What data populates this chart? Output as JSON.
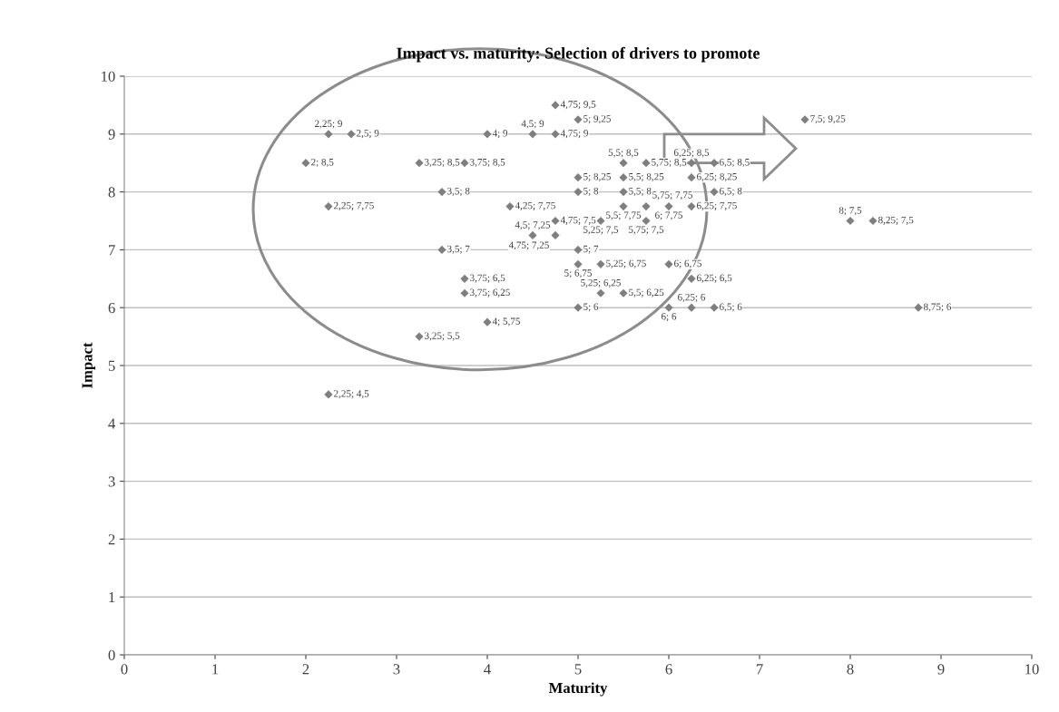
{
  "chart_data": {
    "type": "scatter",
    "title": "Impact vs. maturity: Selection of drivers to promote",
    "xlabel": "Maturity",
    "ylabel": "Impact",
    "x": [
      2.25,
      2.5,
      4,
      4.5,
      4.75,
      4.75,
      5,
      7.5,
      2,
      3.25,
      3.75,
      5.5,
      5.75,
      6.25,
      6.5,
      5,
      5.5,
      6.25,
      3.5,
      5,
      5.5,
      6.5,
      2.25,
      4.25,
      5.5,
      5.75,
      6,
      6.25,
      4.75,
      5.25,
      5.75,
      8,
      8.25,
      4.5,
      4.75,
      3.5,
      5,
      5,
      5.25,
      6,
      3.75,
      6.25,
      3.75,
      5.25,
      5.5,
      5,
      6,
      6.25,
      6.5,
      8.75,
      4,
      3.25,
      2.25
    ],
    "values": [
      9,
      9,
      9,
      9,
      9,
      9.5,
      9.25,
      9.25,
      8.5,
      8.5,
      8.5,
      8.5,
      8.5,
      8.5,
      8.5,
      8.25,
      8.25,
      8.25,
      8,
      8,
      8,
      8,
      7.75,
      7.75,
      7.75,
      7.75,
      7.75,
      7.75,
      7.5,
      7.5,
      7.5,
      7.5,
      7.5,
      7.25,
      7.25,
      7,
      7,
      6.75,
      6.75,
      6.75,
      6.5,
      6.5,
      6.25,
      6.25,
      6.25,
      6,
      6,
      6,
      6,
      6,
      5.75,
      5.5,
      4.5
    ],
    "value_labels": [
      "2,25; 9",
      "2,5; 9",
      "4; 9",
      "4,5; 9",
      "4,75; 9",
      "4,75; 9,5",
      "5; 9,25",
      "7,5; 9,25",
      "2; 8,5",
      "3,25; 8,5",
      "3,75; 8,5",
      "5,5; 8,5",
      "5,75; 8,5",
      "6,25; 8,5",
      "6,5; 8,5",
      "5; 8,25",
      "5,5; 8,25",
      "6,25; 8,25",
      "3,5; 8",
      "5; 8",
      "5,5; 8",
      "6,5; 8",
      "2,25; 7,75",
      "4,25; 7,75",
      "5,5; 7,75",
      "5,75; 7,75",
      "6; 7,75",
      "6,25; 7,75",
      "4,75; 7,5",
      "5,25; 7,5",
      "5,75; 7,5",
      "8; 7,5",
      "8,25; 7,5",
      "4,5; 7,25",
      "4,75; 7,25",
      "3,5; 7",
      "5; 7",
      "5; 6,75",
      "5,25; 6,75",
      "6; 6,75",
      "3,75; 6,5",
      "6,25; 6,5",
      "3,75; 6,25",
      "5,25; 6,25",
      "5,5; 6,25",
      "5; 6",
      "6; 6",
      "6,25; 6",
      "6,5; 6",
      "8,75; 6",
      "4; 5,75",
      "3,25; 5,5",
      "2,25; 4,5"
    ],
    "color": "#7f7f7f",
    "marker": "diamond",
    "xlim": [
      0,
      10
    ],
    "xticks": [
      0,
      1,
      2,
      3,
      4,
      5,
      6,
      7,
      8,
      9,
      10
    ],
    "ylim": [
      0,
      10
    ],
    "yticks": [
      0,
      1,
      2,
      3,
      4,
      5,
      6,
      7,
      8,
      9,
      10
    ],
    "grid": "y",
    "legend": false
  }
}
